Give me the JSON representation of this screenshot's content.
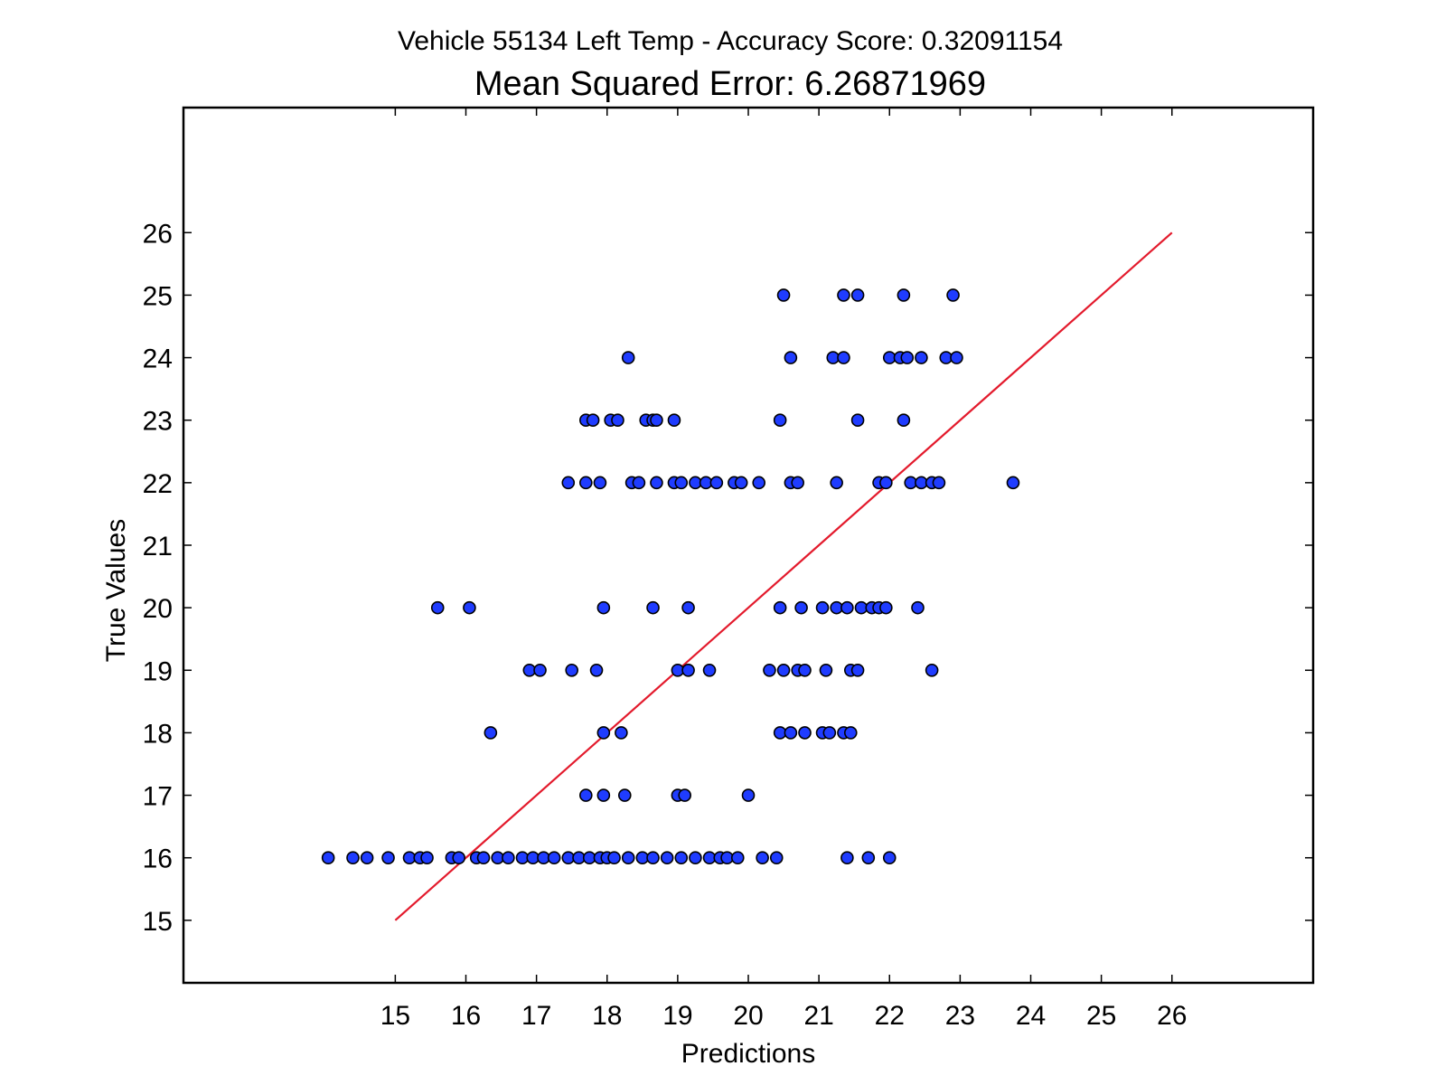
{
  "chart_data": {
    "type": "scatter",
    "title": "Vehicle 55134 Left Temp - Accuracy Score: 0.32091154",
    "subtitle": "Mean Squared Error: 6.26871969",
    "xlabel": "Predictions",
    "ylabel": "True Values",
    "xlim": [
      12.0,
      28.0
    ],
    "ylim": [
      14.0,
      28.0
    ],
    "xticks": [
      15,
      16,
      17,
      18,
      19,
      20,
      21,
      22,
      23,
      24,
      25,
      26
    ],
    "yticks": [
      15,
      16,
      17,
      18,
      19,
      20,
      21,
      22,
      23,
      24,
      25,
      26
    ],
    "grid": false,
    "legend": "none",
    "colors": {
      "points": "#1f3cff",
      "point_edge": "#000000",
      "line": "#e31a2c"
    },
    "reference_line": {
      "x": [
        15,
        26
      ],
      "y": [
        15,
        26
      ]
    },
    "series": [
      {
        "points": [
          [
            20.5,
            25
          ],
          [
            21.35,
            25
          ],
          [
            21.55,
            25
          ],
          [
            22.2,
            25
          ],
          [
            22.9,
            25
          ],
          [
            18.3,
            24
          ],
          [
            20.6,
            24
          ],
          [
            21.2,
            24
          ],
          [
            21.35,
            24
          ],
          [
            22.0,
            24
          ],
          [
            22.15,
            24
          ],
          [
            22.25,
            24
          ],
          [
            22.45,
            24
          ],
          [
            22.8,
            24
          ],
          [
            22.95,
            24
          ],
          [
            17.7,
            23
          ],
          [
            17.8,
            23
          ],
          [
            18.05,
            23
          ],
          [
            18.15,
            23
          ],
          [
            18.55,
            23
          ],
          [
            18.65,
            23
          ],
          [
            18.7,
            23
          ],
          [
            18.95,
            23
          ],
          [
            20.45,
            23
          ],
          [
            21.55,
            23
          ],
          [
            22.2,
            23
          ],
          [
            17.45,
            22
          ],
          [
            17.7,
            22
          ],
          [
            17.9,
            22
          ],
          [
            18.35,
            22
          ],
          [
            18.45,
            22
          ],
          [
            18.7,
            22
          ],
          [
            18.95,
            22
          ],
          [
            19.05,
            22
          ],
          [
            19.25,
            22
          ],
          [
            19.4,
            22
          ],
          [
            19.55,
            22
          ],
          [
            19.8,
            22
          ],
          [
            19.9,
            22
          ],
          [
            20.15,
            22
          ],
          [
            20.6,
            22
          ],
          [
            20.7,
            22
          ],
          [
            21.25,
            22
          ],
          [
            21.85,
            22
          ],
          [
            21.95,
            22
          ],
          [
            22.3,
            22
          ],
          [
            22.45,
            22
          ],
          [
            22.6,
            22
          ],
          [
            22.7,
            22
          ],
          [
            23.75,
            22
          ],
          [
            15.6,
            20
          ],
          [
            16.05,
            20
          ],
          [
            17.95,
            20
          ],
          [
            18.65,
            20
          ],
          [
            19.15,
            20
          ],
          [
            20.45,
            20
          ],
          [
            20.75,
            20
          ],
          [
            21.05,
            20
          ],
          [
            21.25,
            20
          ],
          [
            21.4,
            20
          ],
          [
            21.6,
            20
          ],
          [
            21.75,
            20
          ],
          [
            21.85,
            20
          ],
          [
            21.95,
            20
          ],
          [
            22.4,
            20
          ],
          [
            16.9,
            19
          ],
          [
            17.05,
            19
          ],
          [
            17.5,
            19
          ],
          [
            17.85,
            19
          ],
          [
            19.0,
            19
          ],
          [
            19.15,
            19
          ],
          [
            19.45,
            19
          ],
          [
            20.3,
            19
          ],
          [
            20.5,
            19
          ],
          [
            20.7,
            19
          ],
          [
            20.8,
            19
          ],
          [
            21.1,
            19
          ],
          [
            21.45,
            19
          ],
          [
            21.55,
            19
          ],
          [
            22.6,
            19
          ],
          [
            16.35,
            18
          ],
          [
            17.95,
            18
          ],
          [
            18.2,
            18
          ],
          [
            20.45,
            18
          ],
          [
            20.6,
            18
          ],
          [
            20.8,
            18
          ],
          [
            21.05,
            18
          ],
          [
            21.15,
            18
          ],
          [
            21.35,
            18
          ],
          [
            21.45,
            18
          ],
          [
            17.7,
            17
          ],
          [
            17.95,
            17
          ],
          [
            18.25,
            17
          ],
          [
            19.0,
            17
          ],
          [
            19.1,
            17
          ],
          [
            20.0,
            17
          ],
          [
            14.05,
            16
          ],
          [
            14.4,
            16
          ],
          [
            14.6,
            16
          ],
          [
            14.9,
            16
          ],
          [
            15.2,
            16
          ],
          [
            15.35,
            16
          ],
          [
            15.45,
            16
          ],
          [
            15.8,
            16
          ],
          [
            15.9,
            16
          ],
          [
            16.15,
            16
          ],
          [
            16.25,
            16
          ],
          [
            16.45,
            16
          ],
          [
            16.6,
            16
          ],
          [
            16.8,
            16
          ],
          [
            16.95,
            16
          ],
          [
            17.1,
            16
          ],
          [
            17.25,
            16
          ],
          [
            17.45,
            16
          ],
          [
            17.6,
            16
          ],
          [
            17.75,
            16
          ],
          [
            17.9,
            16
          ],
          [
            18.0,
            16
          ],
          [
            18.1,
            16
          ],
          [
            18.3,
            16
          ],
          [
            18.5,
            16
          ],
          [
            18.65,
            16
          ],
          [
            18.85,
            16
          ],
          [
            19.05,
            16
          ],
          [
            19.25,
            16
          ],
          [
            19.45,
            16
          ],
          [
            19.6,
            16
          ],
          [
            19.7,
            16
          ],
          [
            19.85,
            16
          ],
          [
            20.2,
            16
          ],
          [
            20.4,
            16
          ],
          [
            21.4,
            16
          ],
          [
            21.7,
            16
          ],
          [
            22.0,
            16
          ]
        ]
      }
    ]
  }
}
